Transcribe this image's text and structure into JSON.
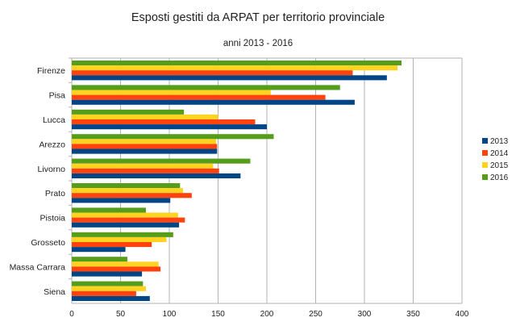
{
  "chart_data": {
    "type": "bar",
    "orientation": "horizontal",
    "title": "Esposti gestiti da ARPAT per territorio provinciale",
    "subtitle": "anni 2013 - 2016",
    "categories": [
      "Firenze",
      "Pisa",
      "Lucca",
      "Arezzo",
      "Livorno",
      "Prato",
      "Pistoia",
      "Grosseto",
      "Massa Carrara",
      "Siena"
    ],
    "series": [
      {
        "name": "2013",
        "color": "#004586",
        "values": [
          323,
          290,
          200,
          149,
          173,
          101,
          110,
          55,
          72,
          80
        ]
      },
      {
        "name": "2014",
        "color": "#ff420e",
        "values": [
          288,
          260,
          188,
          149,
          151,
          123,
          116,
          82,
          91,
          66
        ]
      },
      {
        "name": "2015",
        "color": "#ffd320",
        "values": [
          334,
          204,
          150,
          148,
          145,
          114,
          109,
          97,
          89,
          76
        ]
      },
      {
        "name": "2016",
        "color": "#579d1c",
        "values": [
          338,
          275,
          115,
          207,
          183,
          111,
          76,
          104,
          57,
          73
        ]
      }
    ],
    "xlim": [
      0,
      400
    ],
    "xticks": [
      "0",
      "50",
      "100",
      "150",
      "200",
      "250",
      "300",
      "350",
      "400"
    ],
    "grid": true,
    "legend_position": "right"
  }
}
